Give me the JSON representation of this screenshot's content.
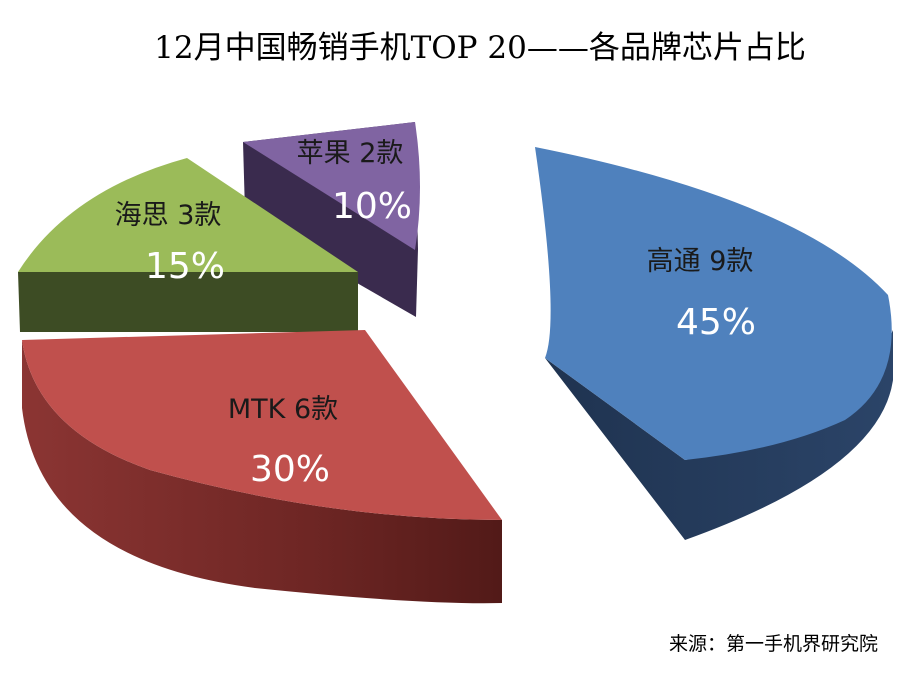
{
  "chart_data": {
    "type": "pie",
    "title": "12月中国畅销手机TOP 20——各品牌芯片占比",
    "slices": [
      {
        "name": "高通",
        "count_label": "9款",
        "value": 45,
        "value_label": "45%",
        "color": "#4f81bd"
      },
      {
        "name": "MTK",
        "count_label": "6款",
        "value": 30,
        "value_label": "30%",
        "color": "#c0504d"
      },
      {
        "name": "海思",
        "count_label": "3款",
        "value": 15,
        "value_label": "15%",
        "color": "#9bbb59"
      },
      {
        "name": "苹果",
        "count_label": "2款",
        "value": 10,
        "value_label": "10%",
        "color": "#8064a2"
      }
    ],
    "source": "来源：第一手机界研究院"
  }
}
